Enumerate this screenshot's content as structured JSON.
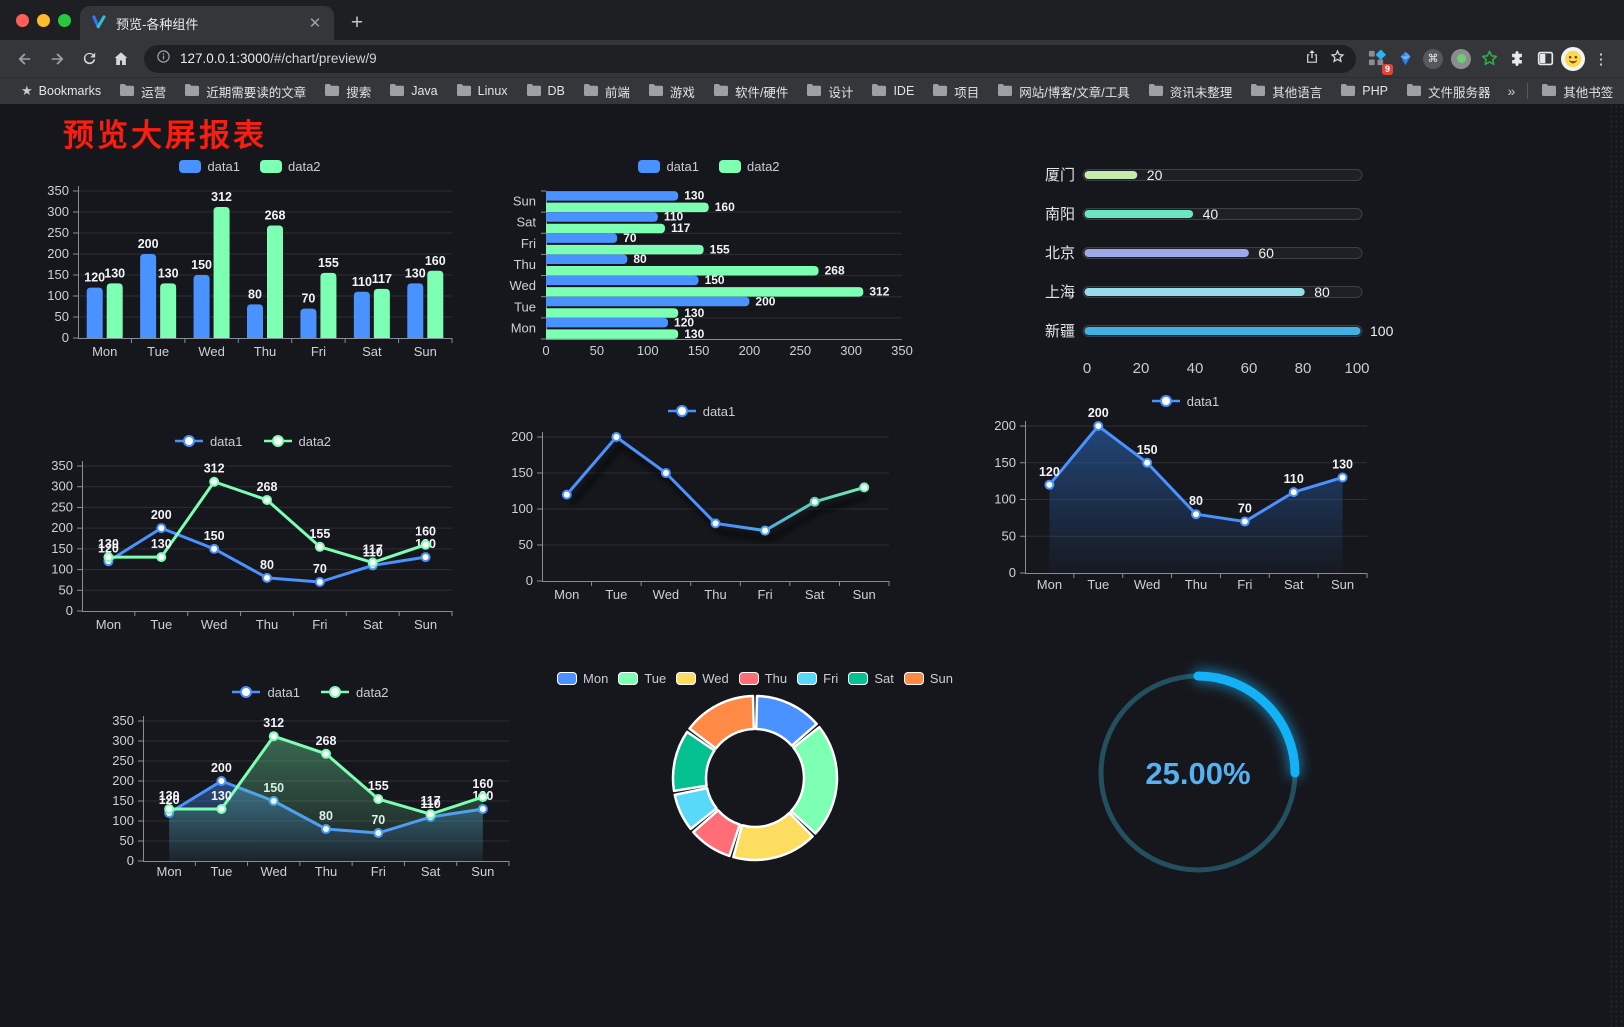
{
  "browser": {
    "tab_title": "预览-各种组件",
    "url_host": "127.0.0.1:3000",
    "url_path": "/#/chart/preview/9",
    "extension_badge": "9",
    "bookmarks_label": "Bookmarks",
    "bookmarks": [
      "运营",
      "近期需要读的文章",
      "搜索",
      "Java",
      "Linux",
      "DB",
      "前端",
      "游戏",
      "软件/硬件",
      "设计",
      "IDE",
      "项目",
      "网站/博客/文章/工具",
      "资讯未整理",
      "其他语言",
      "PHP",
      "文件服务器"
    ],
    "bookmarks_overflow": "»",
    "other_bookmarks": "其他书签"
  },
  "page": {
    "title": "预览大屏报表",
    "title_color": "#fb1e10",
    "background": "#16171c"
  },
  "chart_data": [
    {
      "id": "grouped-bar",
      "type": "bar",
      "categories": [
        "Mon",
        "Tue",
        "Wed",
        "Thu",
        "Fri",
        "Sat",
        "Sun"
      ],
      "series": [
        {
          "name": "data1",
          "color": "#4992ff",
          "values": [
            120,
            200,
            150,
            80,
            70,
            110,
            130
          ]
        },
        {
          "name": "data2",
          "color": "#7cffb2",
          "values": [
            130,
            130,
            312,
            268,
            155,
            117,
            160
          ]
        }
      ],
      "ylim": [
        0,
        350
      ],
      "yticks": [
        0,
        50,
        100,
        150,
        200,
        250,
        300,
        350
      ],
      "legend": "rect",
      "legend_position": "top",
      "grid": true,
      "labels": true
    },
    {
      "id": "horizontal-bar",
      "type": "hbar",
      "categories": [
        "Mon",
        "Tue",
        "Wed",
        "Thu",
        "Fri",
        "Sat",
        "Sun"
      ],
      "categories_display": [
        "Sun",
        "Sat",
        "Fri",
        "Thu",
        "Wed",
        "Tue",
        "Mon"
      ],
      "series": [
        {
          "name": "data1",
          "color": "#4992ff",
          "values": [
            120,
            200,
            150,
            80,
            70,
            110,
            130
          ]
        },
        {
          "name": "data2",
          "color": "#7cffb2",
          "values": [
            130,
            130,
            312,
            268,
            155,
            117,
            160
          ]
        }
      ],
      "xlim": [
        0,
        350
      ],
      "xticks": [
        0,
        50,
        100,
        150,
        200,
        250,
        300,
        350
      ],
      "legend": "rect",
      "legend_position": "top",
      "grid": true,
      "labels": true
    },
    {
      "id": "city-progress",
      "type": "progress",
      "items": [
        {
          "label": "厦门",
          "value": 20,
          "color": "#c4ebad"
        },
        {
          "label": "南阳",
          "value": 40,
          "color": "#6be6c1"
        },
        {
          "label": "北京",
          "value": 60,
          "color": "#a0a7e6"
        },
        {
          "label": "上海",
          "value": 80,
          "color": "#96dee8"
        },
        {
          "label": "新疆",
          "value": 100,
          "color": "#3fb1e3"
        }
      ],
      "xlim": [
        0,
        100
      ],
      "xticks": [
        0,
        20,
        40,
        60,
        80,
        100
      ]
    },
    {
      "id": "line-two-series",
      "type": "line",
      "categories": [
        "Mon",
        "Tue",
        "Wed",
        "Thu",
        "Fri",
        "Sat",
        "Sun"
      ],
      "series": [
        {
          "name": "data1",
          "color": "#4992ff",
          "values": [
            120,
            200,
            150,
            80,
            70,
            110,
            130
          ]
        },
        {
          "name": "data2",
          "color": "#7cffb2",
          "values": [
            130,
            130,
            312,
            268,
            155,
            117,
            160
          ]
        }
      ],
      "ylim": [
        0,
        350
      ],
      "yticks": [
        0,
        50,
        100,
        150,
        200,
        250,
        300,
        350
      ],
      "legend": "line",
      "legend_position": "top",
      "grid": true,
      "labels": true
    },
    {
      "id": "gradient-line",
      "type": "line",
      "categories": [
        "Mon",
        "Tue",
        "Wed",
        "Thu",
        "Fri",
        "Sat",
        "Sun"
      ],
      "series": [
        {
          "name": "data1",
          "color": "#4992ff",
          "gradient_stops": [
            {
              "offset": 0,
              "color": "#4992ff"
            },
            {
              "offset": 0.55,
              "color": "#4992ff"
            },
            {
              "offset": 0.8,
              "color": "#5fd6b5"
            },
            {
              "offset": 1,
              "color": "#7cffb2"
            }
          ],
          "values": [
            120,
            200,
            150,
            80,
            70,
            110,
            130
          ]
        }
      ],
      "ylim": [
        0,
        200
      ],
      "yticks": [
        0,
        50,
        100,
        150,
        200
      ],
      "legend": "line",
      "legend_position": "top",
      "grid": true,
      "labels": false,
      "shadow": true
    },
    {
      "id": "area-line",
      "type": "line",
      "categories": [
        "Mon",
        "Tue",
        "Wed",
        "Thu",
        "Fri",
        "Sat",
        "Sun"
      ],
      "series": [
        {
          "name": "data1",
          "color": "#4992ff",
          "values": [
            120,
            200,
            150,
            80,
            70,
            110,
            130
          ],
          "area": {
            "from": "rgba(40,95,170,0.65)",
            "to": "rgba(40,95,170,0.03)"
          }
        }
      ],
      "ylim": [
        0,
        200
      ],
      "yticks": [
        0,
        50,
        100,
        150,
        200
      ],
      "legend": "line",
      "legend_position": "top",
      "grid": true,
      "labels": true
    },
    {
      "id": "two-series-area",
      "type": "line",
      "categories": [
        "Mon",
        "Tue",
        "Wed",
        "Thu",
        "Fri",
        "Sat",
        "Sun"
      ],
      "series": [
        {
          "name": "data1",
          "color": "#4992ff",
          "values": [
            120,
            200,
            150,
            80,
            70,
            110,
            130
          ],
          "area": {
            "from": "rgba(73,146,255,0.42)",
            "to": "rgba(73,146,255,0.04)"
          }
        },
        {
          "name": "data2",
          "color": "#7cffb2",
          "values": [
            130,
            130,
            312,
            268,
            155,
            117,
            160
          ],
          "area": {
            "from": "rgba(111,227,160,0.40)",
            "to": "rgba(111,227,160,0.04)"
          }
        }
      ],
      "ylim": [
        0,
        350
      ],
      "yticks": [
        0,
        50,
        100,
        150,
        200,
        250,
        300,
        350
      ],
      "legend": "line",
      "legend_position": "top",
      "grid": true,
      "labels": true
    },
    {
      "id": "week-donut",
      "type": "pie",
      "legend_position": "top",
      "items": [
        {
          "label": "Mon",
          "value": 120,
          "color": "#4992ff"
        },
        {
          "label": "Tue",
          "value": 200,
          "color": "#7cffb2"
        },
        {
          "label": "Wed",
          "value": 150,
          "color": "#fddd60"
        },
        {
          "label": "Thu",
          "value": 80,
          "color": "#ff6e76"
        },
        {
          "label": "Fri",
          "value": 70,
          "color": "#58d9f9"
        },
        {
          "label": "Sat",
          "value": 110,
          "color": "#05c091"
        },
        {
          "label": "Sun",
          "value": 130,
          "color": "#ff8a45"
        }
      ]
    },
    {
      "id": "percent-ring",
      "type": "ring",
      "value": 25,
      "max": 100,
      "label": "25.00%",
      "track_color": "#234f5e",
      "bar_color": "#13b2f7",
      "text_color": "#54b1f2"
    }
  ]
}
